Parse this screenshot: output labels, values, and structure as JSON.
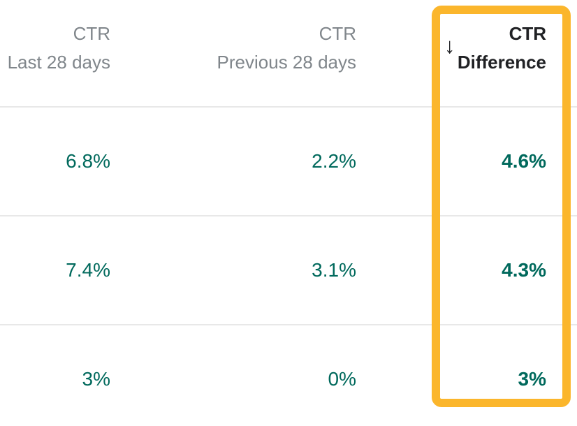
{
  "table": {
    "columns": [
      {
        "line1": "CTR",
        "line2": "Last 28 days",
        "highlighted": false
      },
      {
        "line1": "CTR",
        "line2": "Previous 28 days",
        "highlighted": false
      },
      {
        "line1": "CTR",
        "line2": "Difference",
        "highlighted": true
      }
    ],
    "sort": {
      "column": "CTR Difference",
      "direction": "descending",
      "icon": "arrow-down-icon",
      "glyph": "↓"
    },
    "rows": [
      [
        "6.8%",
        "2.2%",
        "4.6%"
      ],
      [
        "7.4%",
        "3.1%",
        "4.3%"
      ],
      [
        "3%",
        "0%",
        "3%"
      ]
    ]
  },
  "highlight": {
    "target_column": "CTR Difference",
    "outline_color": "#fbb62c"
  },
  "colors": {
    "value_teal": "#00695c",
    "header_gray": "#80868b",
    "dark_text": "#202124",
    "divider": "#e8e8e8",
    "background": "#ffffff"
  }
}
